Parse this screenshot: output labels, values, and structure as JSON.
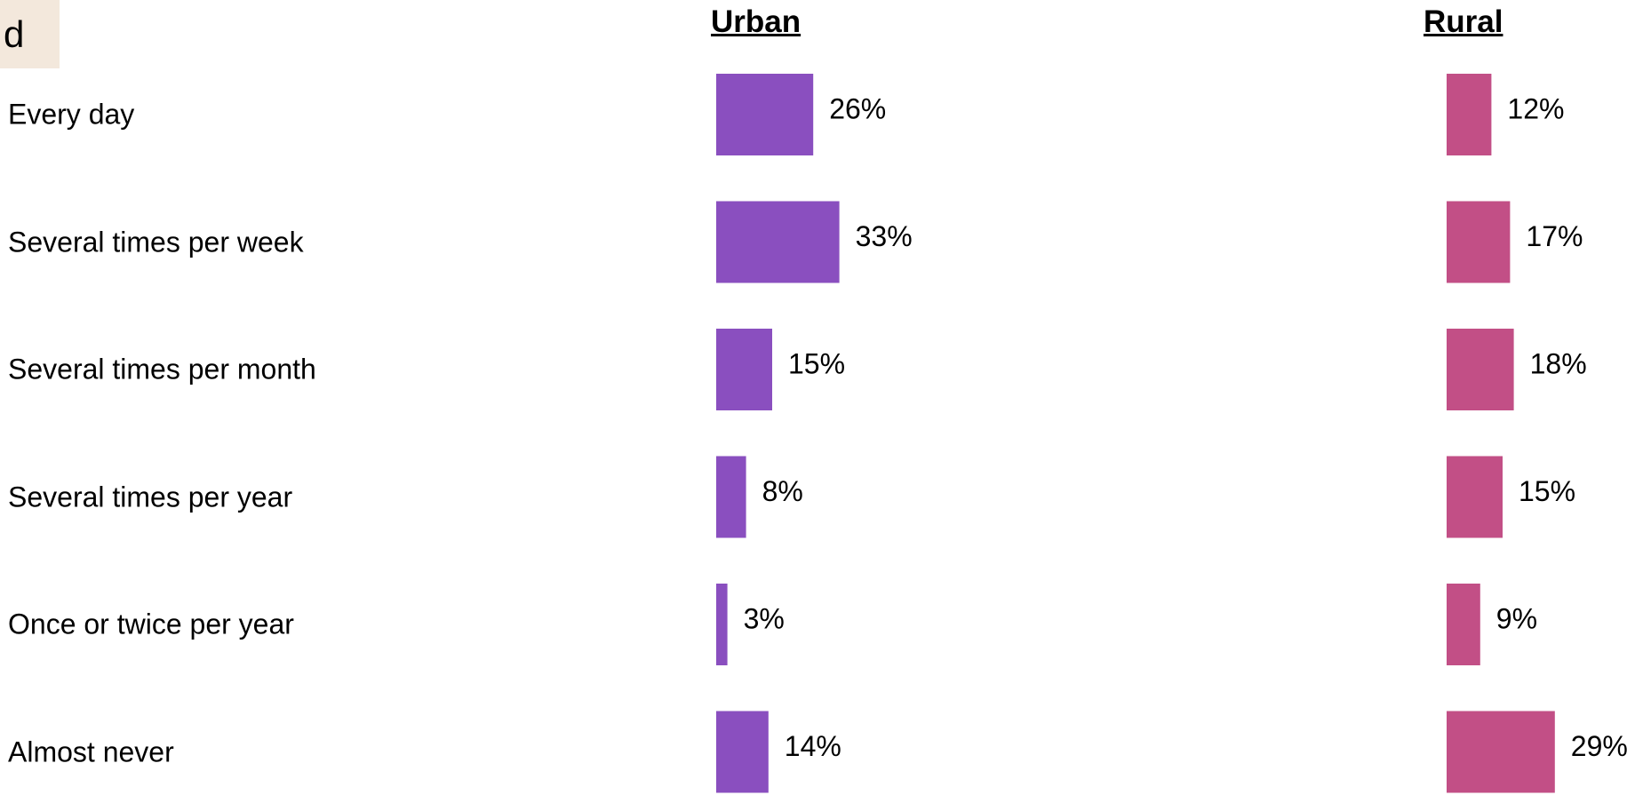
{
  "panel": {
    "label": "d"
  },
  "chart_data": {
    "type": "bar",
    "orientation": "horizontal",
    "categories": [
      "Every day",
      "Several times per week",
      "Several times per month",
      "Several times per year",
      "Once or twice per year",
      "Almost never"
    ],
    "series": [
      {
        "name": "Urban",
        "values": [
          26,
          33,
          15,
          8,
          3,
          14
        ],
        "color": "#8a4fbf"
      },
      {
        "name": "Rural",
        "values": [
          12,
          17,
          18,
          15,
          9,
          29
        ],
        "color": "#c24f86"
      }
    ],
    "unit": "%",
    "grid": false,
    "legend": "none"
  }
}
